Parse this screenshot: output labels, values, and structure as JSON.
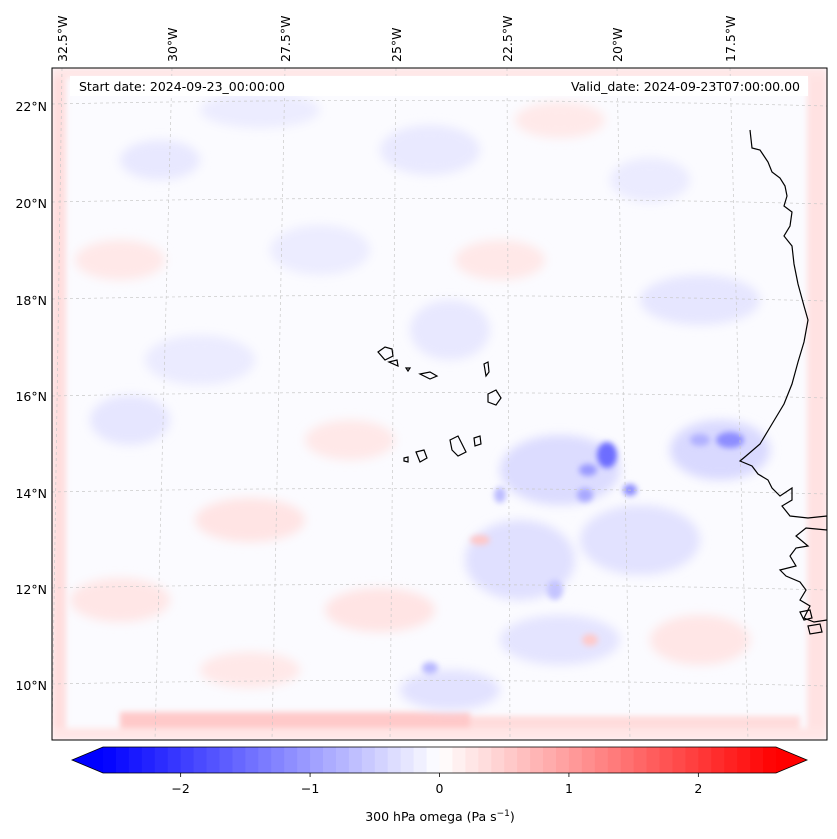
{
  "map": {
    "start_date": "Start date: 2024-09-23_00:00:00",
    "valid_date": "Valid_date: 2024-09-23T07:00:00.00",
    "lon_labels": [
      "32.5°W",
      "30°W",
      "27.5°W",
      "25°W",
      "22.5°W",
      "20°W",
      "17.5°W"
    ],
    "lat_labels": [
      "22°N",
      "20°N",
      "18°N",
      "16°N",
      "14°N",
      "12°N",
      "10°N"
    ],
    "field": "300 hPa omega",
    "units": "Pa s⁻¹"
  },
  "colorbar": {
    "label_prefix": "300 hPa omega (Pa s",
    "label_exp": "−1",
    "label_suffix": ")",
    "ticks": [
      "−2",
      "−1",
      "0",
      "1",
      "2"
    ],
    "tick_values": [
      -2,
      -1,
      0,
      1,
      2
    ],
    "range": [
      -2.6,
      2.6
    ],
    "colors": {
      "min": "#0000ff",
      "mid": "#ffffff",
      "max": "#ff0000"
    }
  },
  "colors": {
    "coastline": "#000000",
    "gridline": "#c8c8c8",
    "background": "#fafaff"
  }
}
